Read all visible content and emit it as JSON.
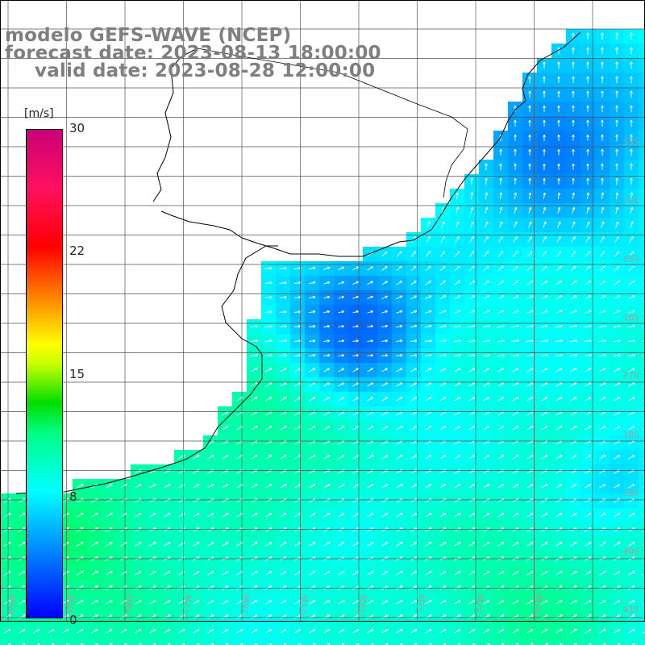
{
  "header": {
    "line1": "modelo GEFS-WAVE (NCEP)",
    "line2": "forecast date: 2023-08-13 18:00:00",
    "line3": "valid date: 2023-08-28 12:00:00"
  },
  "colorbar": {
    "unit": "[m/s]",
    "ticks": [
      "30",
      "22",
      "15",
      "8",
      "0"
    ],
    "colors": [
      "#0000ff",
      "#0080ff",
      "#00ffff",
      "#00ff80",
      "#00dd00",
      "#ffff00",
      "#ff8000",
      "#ff0000",
      "#c80078"
    ]
  },
  "lat_labels": [
    "33S",
    "34S",
    "35S",
    "36S",
    "37S",
    "38S",
    "39S",
    "40S",
    "41S"
  ],
  "lon_labels": [
    "60W",
    "59W",
    "58W",
    "57W",
    "56W",
    "55W",
    "54W",
    "53W",
    "52W",
    "51W"
  ],
  "colors": {
    "land": "#ffffff",
    "coast": "#000000",
    "grid": "#555555",
    "arrow": "#ffffff",
    "header_text": "#7f7f7f"
  }
}
